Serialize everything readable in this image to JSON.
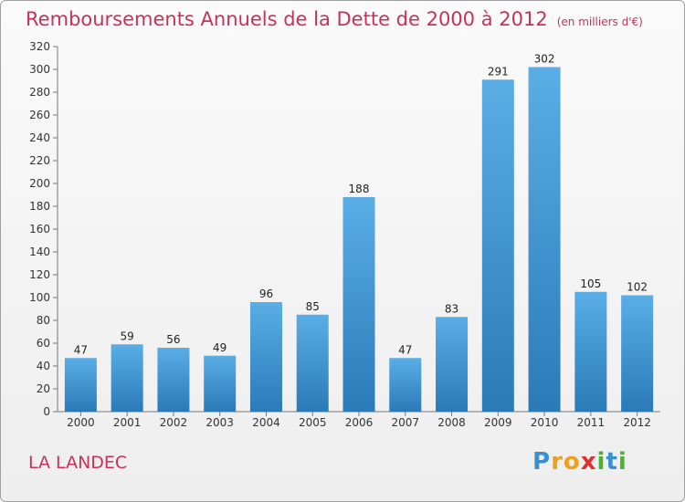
{
  "header": {
    "title": "Remboursements Annuels de la Dette de 2000 à 2012",
    "unit": "(en milliers d'€)"
  },
  "footer": {
    "commune": "LA LANDEC",
    "logo": [
      "P",
      "r",
      "o",
      "x",
      "i",
      "t",
      "i"
    ]
  },
  "colors": {
    "title": "#c8325a",
    "bar_light": "#5aaee6",
    "bar_dark": "#2a7ab8",
    "logo": [
      "#3a8fd0",
      "#f0a020",
      "#f0a020",
      "#e03030",
      "#50b030",
      "#3a8fd0",
      "#50b030"
    ]
  },
  "chart_data": {
    "type": "bar",
    "categories": [
      "2000",
      "2001",
      "2002",
      "2003",
      "2004",
      "2005",
      "2006",
      "2007",
      "2008",
      "2009",
      "2010",
      "2011",
      "2012"
    ],
    "values": [
      47,
      59,
      56,
      49,
      96,
      85,
      188,
      47,
      83,
      291,
      302,
      105,
      102
    ],
    "yticks": [
      0,
      20,
      40,
      60,
      80,
      100,
      120,
      140,
      160,
      180,
      200,
      220,
      240,
      260,
      280,
      300,
      320
    ],
    "ylim": [
      0,
      320
    ],
    "grid": false,
    "legend": "none"
  }
}
